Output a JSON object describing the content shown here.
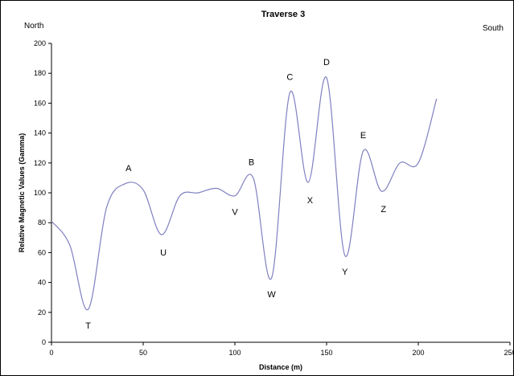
{
  "chart_data": {
    "type": "line",
    "title": "Traverse 3",
    "xlabel": "Distance (m)",
    "ylabel": "Relative Magnetic Values (Gamma)",
    "xlim": [
      0,
      250
    ],
    "ylim": [
      0,
      200
    ],
    "x_ticks": [
      0,
      50,
      100,
      150,
      200,
      250
    ],
    "y_ticks": [
      0,
      20,
      40,
      60,
      80,
      100,
      120,
      140,
      160,
      180,
      200
    ],
    "grid": false,
    "legend": "none",
    "line_color": "#8080c0",
    "corner_left": "North",
    "corner_right": "South",
    "series": [
      {
        "x": [
          0,
          10,
          20,
          30,
          40,
          50,
          60,
          70,
          80,
          90,
          100,
          110,
          120,
          130,
          140,
          150,
          160,
          170,
          180,
          190,
          200,
          210
        ],
        "y": [
          81,
          65,
          22,
          90,
          106,
          102,
          72,
          98,
          100,
          103,
          98,
          110,
          43,
          167,
          107,
          177,
          58,
          128,
          101,
          120,
          120,
          163
        ]
      }
    ],
    "annotations": [
      {
        "text": "T",
        "x": 20,
        "y": 22,
        "pos": "below"
      },
      {
        "text": "A",
        "x": 42,
        "y": 107,
        "pos": "above"
      },
      {
        "text": "U",
        "x": 61,
        "y": 71,
        "pos": "below"
      },
      {
        "text": "V",
        "x": 100,
        "y": 98,
        "pos": "below"
      },
      {
        "text": "B",
        "x": 109,
        "y": 111,
        "pos": "above"
      },
      {
        "text": "W",
        "x": 120,
        "y": 43,
        "pos": "below"
      },
      {
        "text": "C",
        "x": 130,
        "y": 168,
        "pos": "above"
      },
      {
        "text": "X",
        "x": 141,
        "y": 106,
        "pos": "below"
      },
      {
        "text": "D",
        "x": 150,
        "y": 178,
        "pos": "above"
      },
      {
        "text": "Y",
        "x": 160,
        "y": 58,
        "pos": "below"
      },
      {
        "text": "E",
        "x": 170,
        "y": 129,
        "pos": "above"
      },
      {
        "text": "Z",
        "x": 181,
        "y": 100,
        "pos": "below"
      }
    ]
  }
}
